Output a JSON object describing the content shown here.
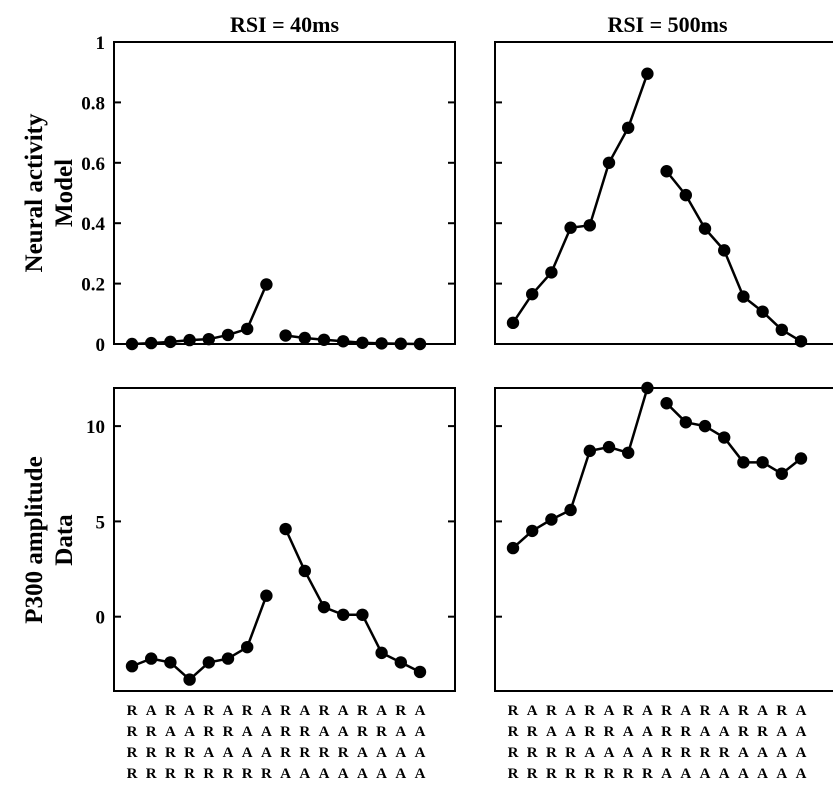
{
  "chart_data": [
    {
      "type": "line",
      "row_label": [
        "Neural activity",
        "Model"
      ],
      "title": "RSI = 40ms",
      "ylim": [
        0,
        1
      ],
      "yticks": [
        0,
        0.2,
        0.4,
        0.6,
        0.8,
        1
      ],
      "ytick_labels": [
        "0",
        "0.2",
        "0.4",
        "0.6",
        "0.8",
        "1"
      ],
      "segments": [
        [
          0.0,
          0.003,
          0.007,
          0.013,
          0.016,
          0.03,
          0.05,
          0.197
        ],
        [
          0.028,
          0.02,
          0.014,
          0.009,
          0.004,
          0.002,
          0.001,
          0.0
        ]
      ]
    },
    {
      "type": "line",
      "title": "RSI = 500ms",
      "ylim": [
        0,
        1
      ],
      "yticks": [
        0,
        0.2,
        0.4,
        0.6,
        0.8,
        1
      ],
      "ytick_labels": [],
      "segments": [
        [
          0.07,
          0.165,
          0.237,
          0.385,
          0.393,
          0.6,
          0.716,
          0.895
        ],
        [
          0.572,
          0.493,
          0.382,
          0.31,
          0.157,
          0.107,
          0.047,
          0.009
        ]
      ]
    },
    {
      "type": "line",
      "row_label": [
        "P300 amplitude",
        "Data"
      ],
      "ylim": [
        -3.9,
        12
      ],
      "yticks": [
        0,
        5,
        10
      ],
      "ytick_labels": [
        "0",
        "5",
        "10"
      ],
      "segments": [
        [
          -2.6,
          -2.2,
          -2.4,
          -3.3,
          -2.4,
          -2.2,
          -1.6,
          1.1
        ],
        [
          4.6,
          2.4,
          0.5,
          0.1,
          0.1,
          -1.9,
          -2.4,
          -2.9
        ]
      ]
    },
    {
      "type": "line",
      "ylim": [
        -3.9,
        12
      ],
      "yticks": [
        0,
        5,
        10
      ],
      "ytick_labels": [],
      "segments": [
        [
          3.6,
          4.5,
          5.1,
          5.6,
          8.7,
          8.9,
          8.6,
          12.0
        ],
        [
          11.2,
          10.2,
          10.0,
          9.4,
          8.1,
          8.1,
          7.5,
          8.3
        ]
      ]
    }
  ],
  "sequence_labels": [
    "RARARARARARARARA",
    "RRAARRAARRAARRAA",
    "RRRRAAAARRRRAAAA",
    "RRRRRRRRAAAAAAAA"
  ]
}
